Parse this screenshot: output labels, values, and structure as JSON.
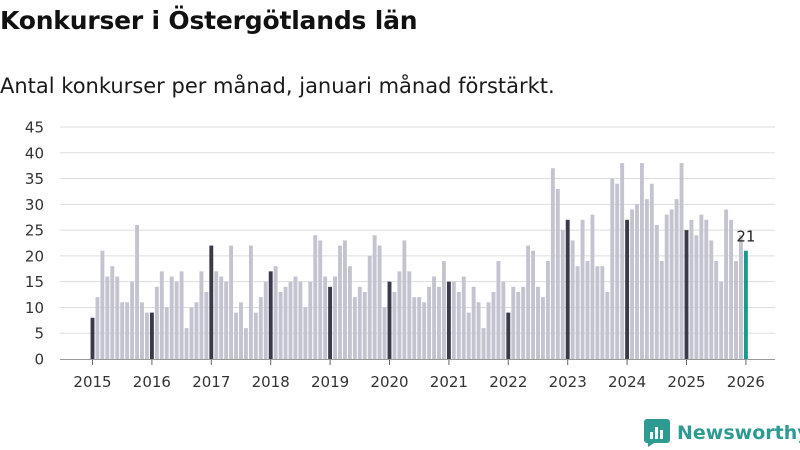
{
  "title": "Konkurser i Östergötlands län",
  "subtitle": "Antal konkurser per månad, januari månad förstärkt.",
  "brand": {
    "name": "Newsworthy",
    "icon": "newsworthy-logo-icon"
  },
  "colors": {
    "january": "#3a3a4a",
    "regular": "#c4c4d0",
    "latest": "#1a9a8e",
    "grid": "#dddddd",
    "brand": "#2e9b93"
  },
  "chart_data": {
    "type": "bar",
    "title": "Konkurser i Östergötlands län",
    "xlabel": "",
    "ylabel": "",
    "ylim": [
      0,
      45
    ],
    "yticks": [
      0,
      5,
      10,
      15,
      20,
      25,
      30,
      35,
      40,
      45
    ],
    "xticks": [
      "2015",
      "2016",
      "2017",
      "2018",
      "2019",
      "2020",
      "2021",
      "2022",
      "2023",
      "2024",
      "2025",
      "2026"
    ],
    "start": "2015-01",
    "highlight": "januari",
    "latest_label": "21",
    "grid": true,
    "values": [
      8,
      12,
      21,
      16,
      18,
      16,
      11,
      11,
      15,
      26,
      11,
      9,
      9,
      14,
      17,
      10,
      16,
      15,
      17,
      6,
      10,
      11,
      17,
      13,
      22,
      17,
      16,
      15,
      22,
      9,
      11,
      6,
      22,
      9,
      12,
      15,
      17,
      18,
      13,
      14,
      15,
      16,
      15,
      10,
      15,
      24,
      23,
      16,
      14,
      16,
      22,
      23,
      18,
      12,
      14,
      13,
      20,
      24,
      22,
      10,
      15,
      13,
      17,
      23,
      17,
      12,
      12,
      11,
      14,
      16,
      14,
      19,
      15,
      15,
      13,
      16,
      9,
      14,
      11,
      6,
      11,
      13,
      19,
      15,
      9,
      14,
      13,
      14,
      22,
      21,
      14,
      12,
      19,
      37,
      33,
      25,
      27,
      23,
      18,
      27,
      19,
      28,
      18,
      18,
      13,
      35,
      34,
      38,
      27,
      29,
      30,
      38,
      31,
      34,
      26,
      19,
      28,
      29,
      31,
      38,
      25,
      27,
      24,
      28,
      27,
      23,
      19,
      15,
      29,
      27,
      19,
      24,
      21
    ]
  }
}
